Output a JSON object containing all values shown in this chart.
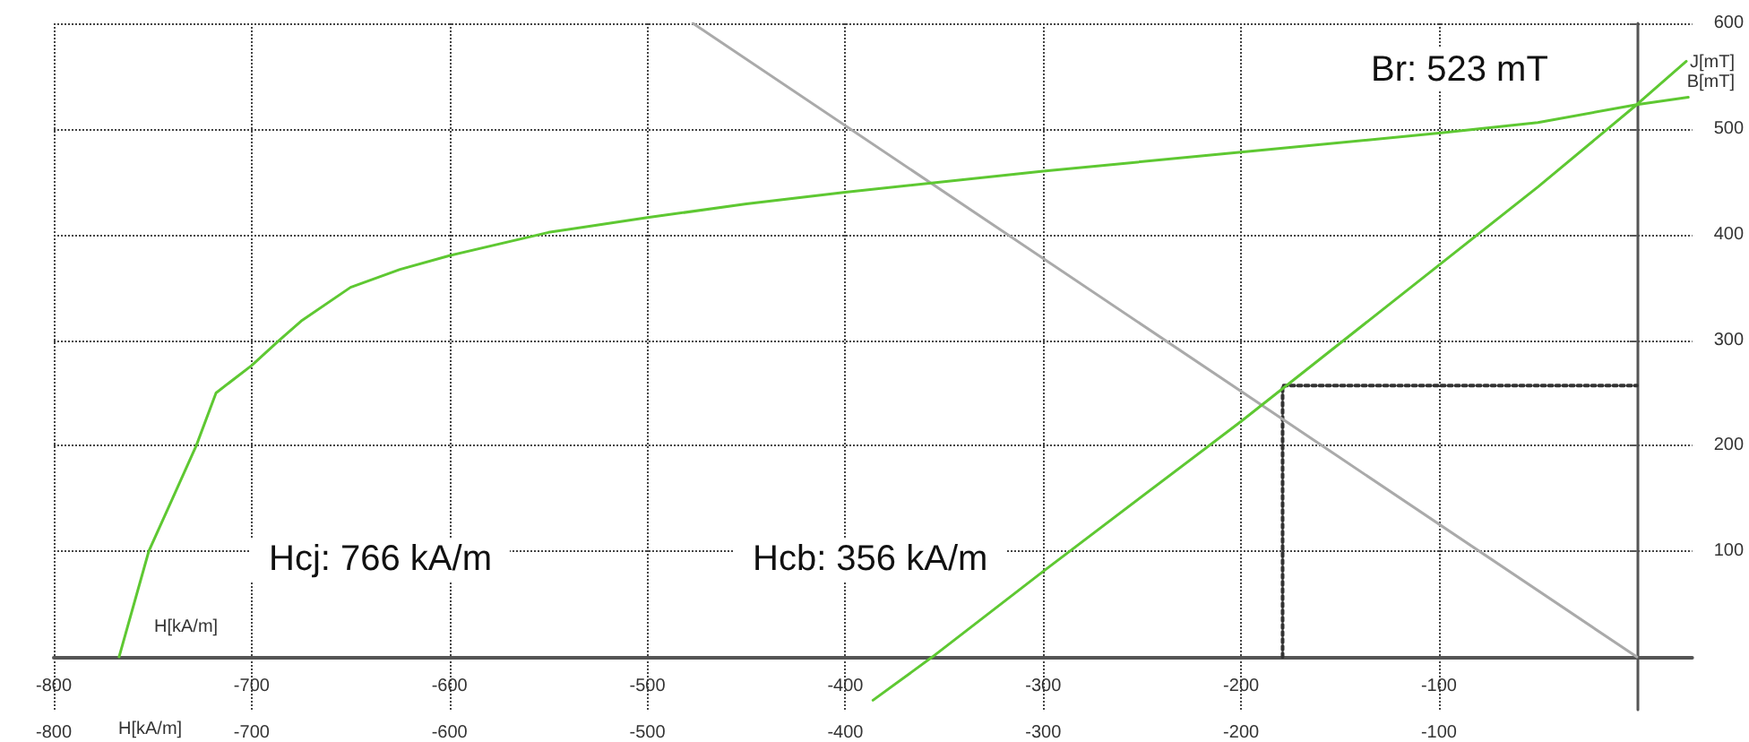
{
  "chart_data": {
    "type": "line",
    "xlabel": "H[kA/m]",
    "x2label": "H[kA/m]",
    "ylabel": "J[mT]",
    "y2label": "B[mT]",
    "xlim": [
      -800,
      28
    ],
    "xticks": [
      -800,
      -700,
      -600,
      -500,
      -400,
      -300,
      -200,
      -100
    ],
    "x2lim": [
      -800,
      28
    ],
    "x2ticks": [
      -800,
      -700,
      -600,
      -500,
      -400,
      -300,
      -200,
      -100
    ],
    "ylim": [
      -50,
      600
    ],
    "yticks": [
      100,
      200,
      300,
      400,
      500,
      600
    ],
    "grid": true,
    "marker": "none",
    "series": [
      {
        "color": "#5ec832",
        "x": [
          -767,
          -752,
          -740,
          -728,
          -718,
          -700,
          -686,
          -675,
          -650,
          -625,
          -600,
          -550,
          -500,
          -450,
          -400,
          -300,
          -200,
          -100,
          -50,
          0,
          26
        ],
        "values": [
          0,
          100,
          150,
          200,
          250,
          276,
          300,
          318,
          350,
          367,
          380,
          402,
          416,
          429,
          440,
          460,
          478,
          496,
          506,
          523,
          530
        ]
      },
      {
        "color": "#5ec832",
        "x": [
          -386,
          -356,
          -300,
          -200,
          -100,
          -50,
          0,
          25
        ],
        "values": [
          -41,
          0,
          81,
          223,
          371,
          445,
          523,
          564
        ]
      },
      {
        "color": "#aaaaaa",
        "x": [
          -477,
          0
        ],
        "values": [
          600,
          0
        ]
      },
      {
        "color": "#333333",
        "line_style": "dotted",
        "x": [
          -179,
          -179,
          0
        ],
        "values": [
          0,
          257,
          257
        ]
      }
    ],
    "annotations": [
      "Hcj: 766 kA/m",
      "Hcb: 356 kA/m",
      "Br: 523 mT"
    ]
  }
}
